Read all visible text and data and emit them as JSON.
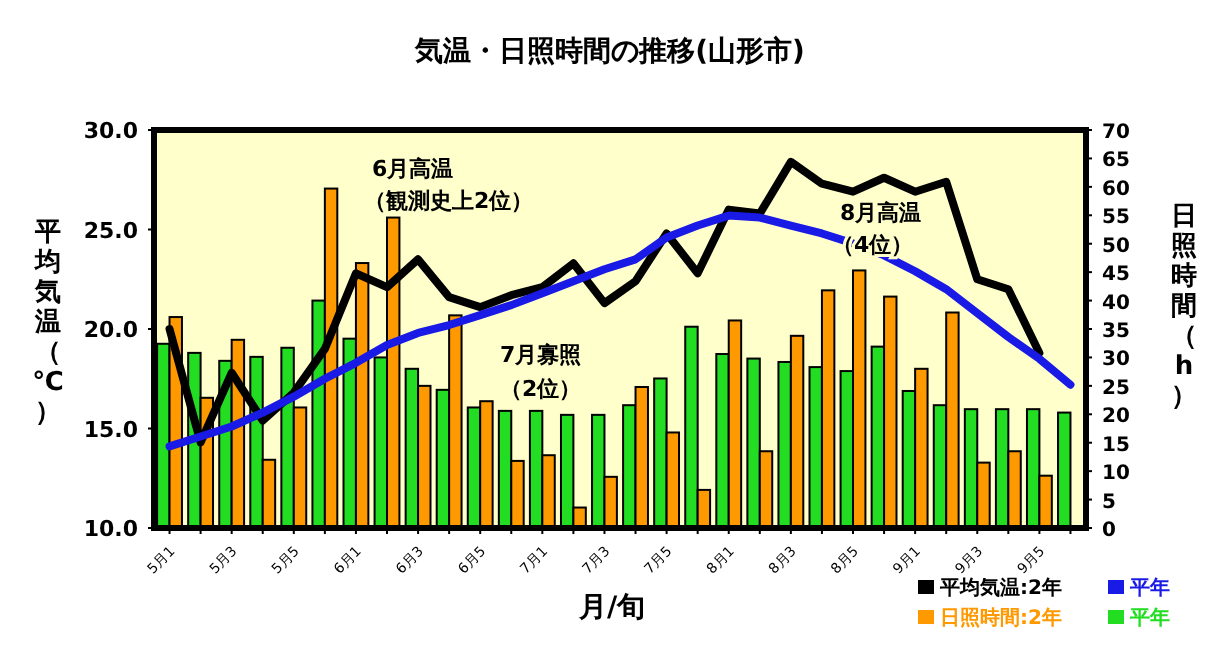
{
  "chart_data": {
    "type": "bar",
    "title": "気温・日照時間の推移(山形市)",
    "xlabel": "月/旬",
    "ylabel": "平均気温（℃）",
    "y2label": "日照時間（h）",
    "categories": [
      "5月1",
      null,
      "5月3",
      null,
      "5月5",
      null,
      "6月1",
      null,
      "6月3",
      null,
      "6月5",
      null,
      "7月1",
      null,
      "7月3",
      null,
      "7月5",
      null,
      "8月1",
      null,
      "8月3",
      null,
      "8月5",
      null,
      "9月1",
      null,
      "9月3",
      null,
      "9月5",
      null
    ],
    "series": [
      {
        "name": "平年",
        "axis": "y2",
        "color": "#22dd22",
        "values": [
          32.4,
          30.8,
          29.4,
          30.1,
          31.7,
          40.0,
          33.3,
          30,
          28.0,
          24.3,
          21.2,
          20.6,
          20.6,
          19.9,
          19.9,
          21.6,
          26.3,
          35.4,
          30.6,
          29.8,
          29.2,
          28.3,
          27.6,
          31.9,
          24.1,
          21.6,
          20.9,
          20.9,
          20.9,
          20.3
        ]
      },
      {
        "name": "日照時間:2年",
        "axis": "y2",
        "color": "#ff9900",
        "values": [
          37.1,
          22.9,
          33.1,
          12.0,
          21.2,
          59.7,
          46.6,
          54.6,
          25.0,
          37.4,
          22.3,
          11.8,
          12.8,
          3.6,
          9,
          24.8,
          16.8,
          6.7,
          36.5,
          13.5,
          33.8,
          41.8,
          45.3,
          40.7,
          28.0,
          37.9,
          11.5,
          13.5,
          9.2,
          null
        ]
      },
      {
        "name": "平均気温:2年",
        "type": "line",
        "color": "#000000",
        "values": [
          20.0,
          14.3,
          17.8,
          15.4,
          16.8,
          19.0,
          22.8,
          22.1,
          23.5,
          21.6,
          21.1,
          21.7,
          22.1,
          23.3,
          21.3,
          22.4,
          24.8,
          22.8,
          26.0,
          25.8,
          28.4,
          27.3,
          26.9,
          27.6,
          26.9,
          27.4,
          22.5,
          22.0,
          18.8,
          null
        ]
      },
      {
        "name": "平年",
        "type": "line",
        "color": "#1a1ae6",
        "values": [
          14.1,
          14.6,
          15.1,
          15.8,
          16.6,
          17.5,
          18.3,
          19.2,
          19.8,
          20.2,
          20.7,
          21.2,
          21.8,
          22.4,
          23.0,
          23.5,
          24.6,
          25.2,
          25.7,
          25.6,
          25.2,
          24.8,
          24.3,
          23.7,
          22.9,
          22.0,
          20.8,
          19.6,
          18.5,
          17.2
        ]
      }
    ],
    "ylim": [
      10,
      30
    ],
    "yticks": [
      {
        "value": 10,
        "label": "10.0"
      },
      {
        "value": 15,
        "label": "15.0"
      },
      {
        "value": 20,
        "label": "20.0"
      },
      {
        "value": 25,
        "label": "25.0"
      },
      {
        "value": 30,
        "label": "30.0"
      }
    ],
    "y2lim": [
      0,
      70
    ],
    "y2ticks": [
      0,
      5,
      10,
      15,
      20,
      25,
      30,
      35,
      40,
      45,
      50,
      55,
      60,
      65,
      70
    ],
    "annotations": [
      "6月高温",
      "（観測史上2位）",
      "7月寡照",
      "（2位）",
      "8月高温",
      "（4位）"
    ],
    "legend": "bottom right",
    "grid": false
  }
}
